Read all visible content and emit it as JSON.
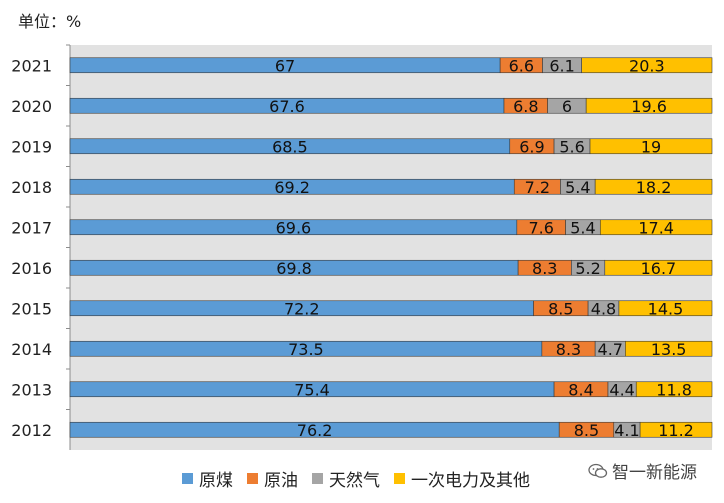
{
  "unit_label": "单位：%",
  "watermark_text": "智一新能源",
  "watermark_icon": "wechat-icon",
  "colors": {
    "plot_bg": "#e2e2e2",
    "原煤": "#5b9bd5",
    "原油": "#ed7d31",
    "天然气": "#a5a5a5",
    "一次电力及其他": "#ffc000"
  },
  "chart_data": {
    "type": "bar",
    "orientation": "horizontal",
    "stacked": true,
    "categories": [
      "2021",
      "2020",
      "2019",
      "2018",
      "2017",
      "2016",
      "2015",
      "2014",
      "2013",
      "2012"
    ],
    "series": [
      {
        "name": "原煤",
        "values": [
          67,
          67.6,
          68.5,
          69.2,
          69.6,
          69.8,
          72.2,
          73.5,
          75.4,
          76.2
        ]
      },
      {
        "name": "原油",
        "values": [
          6.6,
          6.8,
          6.9,
          7.2,
          7.6,
          8.3,
          8.5,
          8.3,
          8.4,
          8.5
        ]
      },
      {
        "name": "天然气",
        "values": [
          6.1,
          6,
          5.6,
          5.4,
          5.4,
          5.2,
          4.8,
          4.7,
          4.4,
          4.1
        ]
      },
      {
        "name": "一次电力及其他",
        "values": [
          20.3,
          19.6,
          19,
          18.2,
          17.4,
          16.7,
          14.5,
          13.5,
          11.8,
          11.2
        ]
      }
    ],
    "xlim": [
      0,
      100
    ],
    "legend_position": "bottom",
    "grid": false
  }
}
